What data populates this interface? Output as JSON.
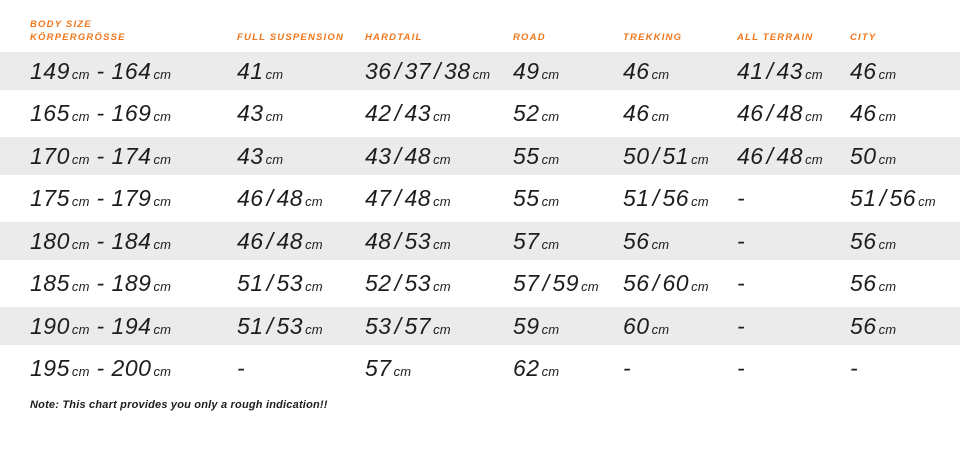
{
  "colors": {
    "accent": "#f2761b",
    "text": "#1d1d1b",
    "row_stripe": "#ebebeb",
    "background": "#ffffff"
  },
  "header": {
    "body_size_lines": [
      "BODY SIZE",
      "KÖRPERGRÖSSE"
    ]
  },
  "chart_data": {
    "type": "table",
    "title": "Bike frame size chart by body size",
    "columns": [
      "BODY SIZE / KÖRPERGRÖSSE",
      "FULL SUSPENSION",
      "HARDTAIL",
      "ROAD",
      "TREKKING",
      "ALL TERRAIN",
      "CITY"
    ],
    "rows": [
      [
        "149cm - 164cm",
        "41cm",
        "36/37/38cm",
        "49cm",
        "46cm",
        "41/43cm",
        "46cm"
      ],
      [
        "165cm - 169cm",
        "43cm",
        "42/43cm",
        "52cm",
        "46cm",
        "46/48cm",
        "46cm"
      ],
      [
        "170cm - 174cm",
        "43cm",
        "43/48cm",
        "55cm",
        "50/51cm",
        "46/48cm",
        "50cm"
      ],
      [
        "175cm - 179cm",
        "46/48cm",
        "47/48cm",
        "55cm",
        "51/56cm",
        "-",
        "51/56cm"
      ],
      [
        "180cm - 184cm",
        "46/48cm",
        "48/53cm",
        "57cm",
        "56cm",
        "-",
        "56cm"
      ],
      [
        "185cm - 189cm",
        "51/53cm",
        "52/53cm",
        "57/59cm",
        "56/60cm",
        "-",
        "56cm"
      ],
      [
        "190cm - 194cm",
        "51/53cm",
        "53/57cm",
        "59cm",
        "60cm",
        "-",
        "56cm"
      ],
      [
        "195cm - 200cm",
        "-",
        "57cm",
        "62cm",
        "-",
        "-",
        "-"
      ]
    ],
    "layout": {
      "stripe_rows": "odd rows (1st, 3rd, 5th, 7th) have gray background",
      "grid": false,
      "alignment": "left"
    }
  },
  "note": "Note: This chart provides you only a rough indication!!"
}
